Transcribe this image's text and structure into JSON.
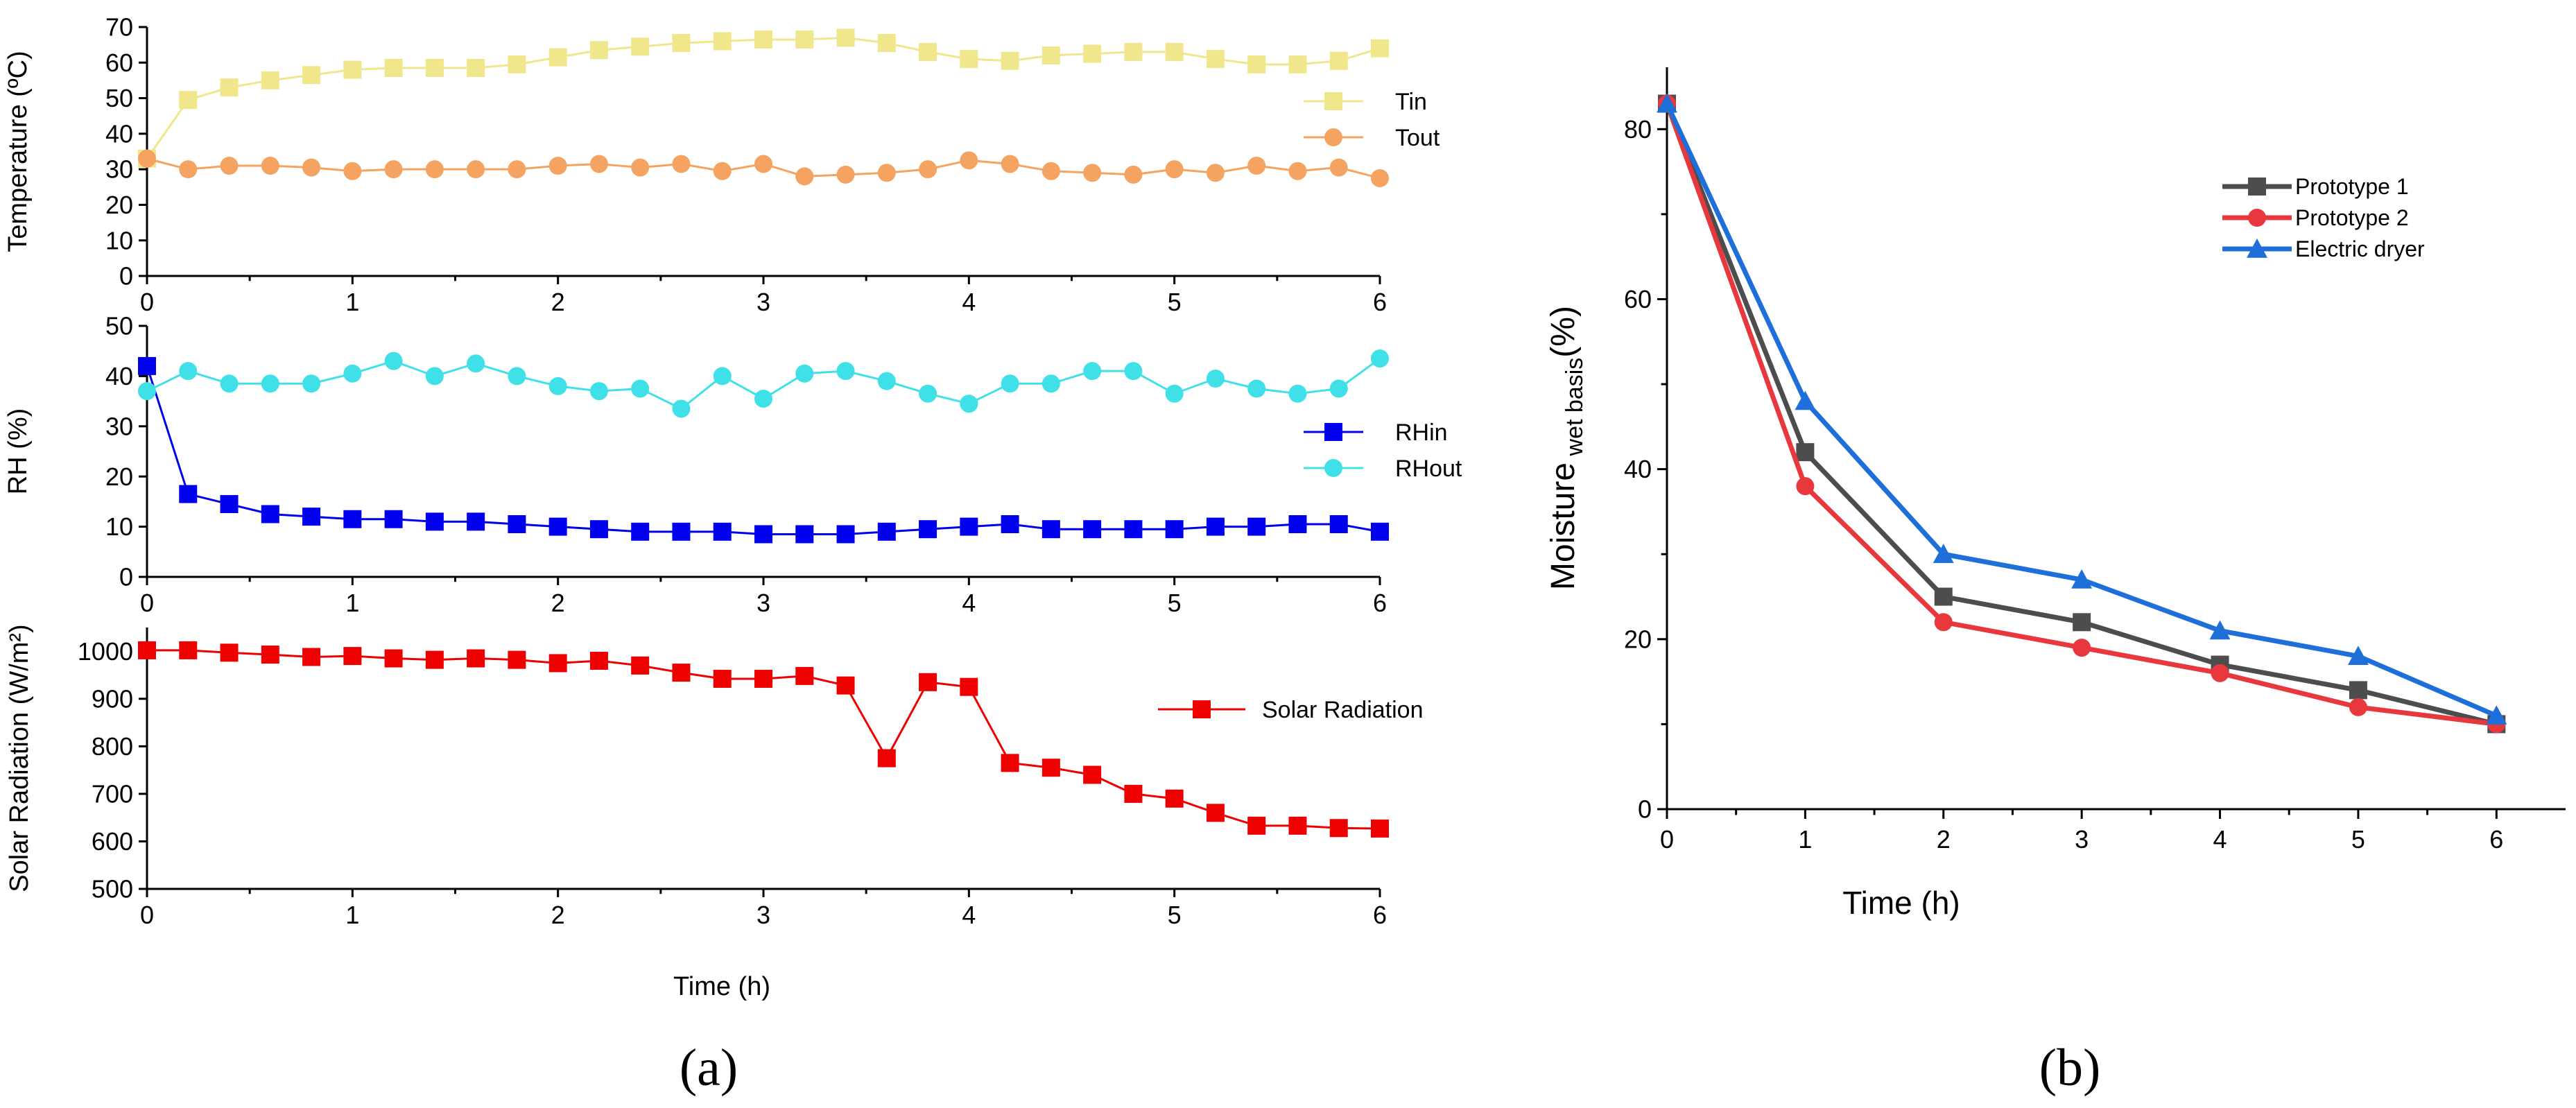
{
  "figure": {
    "panel_a_label": "(a)",
    "panel_b_label": "(b)"
  },
  "chart_data": [
    {
      "id": "temperature",
      "type": "line",
      "title": "",
      "xlabel": "",
      "ylabel": "Temperature (ºC)",
      "xlim": [
        0,
        6
      ],
      "ylim": [
        0,
        70
      ],
      "xticks": [
        0,
        1,
        2,
        3,
        4,
        5,
        6
      ],
      "yticks": [
        0,
        10,
        20,
        30,
        40,
        50,
        60,
        70
      ],
      "grid": false,
      "legend": "right",
      "x": [
        0,
        0.2,
        0.4,
        0.6,
        0.8,
        1.0,
        1.2,
        1.4,
        1.6,
        1.8,
        2.0,
        2.2,
        2.4,
        2.6,
        2.8,
        3.0,
        3.2,
        3.4,
        3.6,
        3.8,
        4.0,
        4.2,
        4.4,
        4.6,
        4.8,
        5.0,
        5.2,
        5.4,
        5.6,
        5.8,
        6.0
      ],
      "series": [
        {
          "name": "Tin",
          "color": "#f0e68c",
          "marker": "square",
          "values": [
            33,
            49.5,
            53,
            55,
            56.5,
            58,
            58.5,
            58.5,
            58.5,
            59.5,
            61.5,
            63.5,
            64.5,
            65.5,
            66,
            66.5,
            66.5,
            67,
            65.5,
            63,
            61,
            60.5,
            62,
            62.5,
            63,
            63,
            61,
            59.5,
            59.5,
            60.5,
            64
          ]
        },
        {
          "name": "Tout",
          "color": "#f4a460",
          "marker": "circle",
          "values": [
            33,
            30,
            31,
            31,
            30.5,
            29.5,
            30,
            30,
            30,
            30,
            31,
            31.5,
            30.5,
            31.5,
            29.5,
            31.5,
            28,
            28.5,
            29,
            30,
            32.5,
            31.5,
            29.5,
            29,
            28.5,
            30,
            29,
            31,
            29.5,
            30.5,
            27.5
          ]
        }
      ]
    },
    {
      "id": "rh",
      "type": "line",
      "title": "",
      "xlabel": "",
      "ylabel": "RH (%)",
      "xlim": [
        0,
        6
      ],
      "ylim": [
        0,
        50
      ],
      "xticks": [
        0,
        1,
        2,
        3,
        4,
        5,
        6
      ],
      "yticks": [
        0,
        10,
        20,
        30,
        40,
        50
      ],
      "grid": false,
      "legend": "right",
      "x": [
        0,
        0.2,
        0.4,
        0.6,
        0.8,
        1.0,
        1.2,
        1.4,
        1.6,
        1.8,
        2.0,
        2.2,
        2.4,
        2.6,
        2.8,
        3.0,
        3.2,
        3.4,
        3.6,
        3.8,
        4.0,
        4.2,
        4.4,
        4.6,
        4.8,
        5.0,
        5.2,
        5.4,
        5.6,
        5.8,
        6.0
      ],
      "series": [
        {
          "name": "RHin",
          "color": "#0000ee",
          "marker": "square",
          "values": [
            42,
            16.5,
            14.5,
            12.5,
            12,
            11.5,
            11.5,
            11,
            11,
            10.5,
            10,
            9.5,
            9,
            9,
            9,
            8.5,
            8.5,
            8.5,
            9,
            9.5,
            10,
            10.5,
            9.5,
            9.5,
            9.5,
            9.5,
            10,
            10,
            10.5,
            10.5,
            9
          ]
        },
        {
          "name": "RHout",
          "color": "#40e0e8",
          "marker": "circle",
          "values": [
            37,
            41,
            38.5,
            38.5,
            38.5,
            40.5,
            43,
            40,
            42.5,
            40,
            38,
            37,
            37.5,
            33.5,
            40,
            35.5,
            40.5,
            41,
            39,
            36.5,
            34.5,
            38.5,
            38.5,
            41,
            41,
            36.5,
            39.5,
            37.5,
            36.5,
            37.5,
            43.5
          ]
        }
      ]
    },
    {
      "id": "solar",
      "type": "line",
      "title": "",
      "xlabel": "Time (h)",
      "ylabel": "Solar Radiation (W/m²)",
      "xlim": [
        0,
        6
      ],
      "ylim": [
        500,
        1050
      ],
      "xticks": [
        0,
        1,
        2,
        3,
        4,
        5,
        6
      ],
      "yticks": [
        500,
        600,
        700,
        800,
        900,
        1000
      ],
      "grid": false,
      "legend": "right",
      "x": [
        0,
        0.2,
        0.4,
        0.6,
        0.8,
        1.0,
        1.2,
        1.4,
        1.6,
        1.8,
        2.0,
        2.2,
        2.4,
        2.6,
        2.8,
        3.0,
        3.2,
        3.4,
        3.6,
        3.8,
        4.0,
        4.2,
        4.4,
        4.6,
        4.8,
        5.0,
        5.2,
        5.4,
        5.6,
        5.8,
        6.0
      ],
      "series": [
        {
          "name": "Solar Radiation",
          "color": "#ee0000",
          "marker": "square",
          "values": [
            1002,
            1002,
            997,
            993,
            988,
            990,
            985,
            982,
            985,
            982,
            975,
            980,
            970,
            955,
            942,
            942,
            948,
            928,
            775,
            935,
            925,
            765,
            755,
            740,
            700,
            690,
            660,
            633,
            633,
            628,
            627
          ]
        }
      ]
    },
    {
      "id": "moisture",
      "type": "line",
      "title": "",
      "xlabel": "Time (h)",
      "ylabel": "Moisture",
      "ylabel_sub": "wet basis",
      "ylabel_suffix": "(%)",
      "xlim": [
        0,
        6.5
      ],
      "ylim": [
        0,
        85
      ],
      "xticks": [
        0,
        1,
        2,
        3,
        4,
        5,
        6
      ],
      "yticks": [
        0,
        20,
        40,
        60,
        80
      ],
      "grid": false,
      "legend": "top-right",
      "x": [
        0,
        1,
        2,
        3,
        4,
        5,
        6
      ],
      "series": [
        {
          "name": "Prototype 1",
          "color": "#4d4d4d",
          "marker": "square",
          "values": [
            83,
            42,
            25,
            22,
            17,
            14,
            10
          ]
        },
        {
          "name": "Prototype 2",
          "color": "#e8383d",
          "marker": "circle",
          "values": [
            83,
            38,
            22,
            19,
            16,
            12,
            10
          ]
        },
        {
          "name": "Electric dryer",
          "color": "#1e6fd9",
          "marker": "triangle",
          "values": [
            83,
            48,
            30,
            27,
            21,
            18,
            11
          ]
        }
      ]
    }
  ]
}
